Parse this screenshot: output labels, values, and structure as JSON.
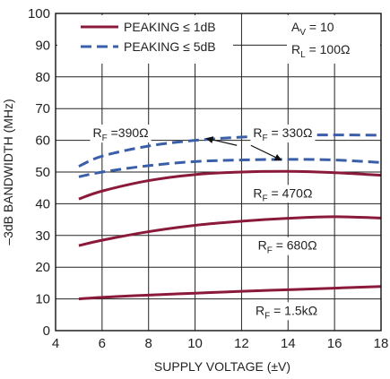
{
  "chart_data": {
    "type": "line",
    "xlabel": "SUPPLY VOLTAGE (±V)",
    "ylabel": "–3dB BANDWIDTH (MHz)",
    "xlim": [
      4,
      18
    ],
    "ylim": [
      0,
      100
    ],
    "xticks": [
      "4",
      "6",
      "8",
      "10",
      "12",
      "14",
      "16",
      "18"
    ],
    "yticks": [
      "0",
      "10",
      "20",
      "30",
      "40",
      "50",
      "60",
      "70",
      "80",
      "90",
      "100"
    ],
    "grid": true,
    "legend_placement": "top-left",
    "legend": [
      {
        "label": "PEAKING ≤ 1dB",
        "style": "solid",
        "color": "#8b1a3a"
      },
      {
        "label": "PEAKING ≤ 5dB",
        "style": "dashed",
        "color": "#3a5ea8"
      }
    ],
    "conditions": {
      "av": {
        "main": "A",
        "sub": "V",
        "rest": " = 10"
      },
      "rl": {
        "main": "R",
        "sub": "L",
        "rest": " = 100Ω"
      }
    },
    "series": [
      {
        "group": "PEAKING ≤ 5dB",
        "style": "dashed",
        "color": "#3a5ea8",
        "x": [
          5,
          6,
          8,
          10,
          12,
          14,
          16,
          18
        ],
        "y": [
          51.8,
          55,
          58.2,
          60,
          61,
          61.6,
          61.7,
          61.6
        ]
      },
      {
        "group": "PEAKING ≤ 5dB",
        "style": "dashed",
        "color": "#3a5ea8",
        "x": [
          5,
          6,
          8,
          10,
          12,
          14,
          16,
          18
        ],
        "y": [
          48.5,
          50,
          52,
          53.3,
          53.8,
          54,
          53.8,
          53
        ]
      },
      {
        "group": "PEAKING ≤ 1dB",
        "style": "solid",
        "color": "#8b1a3a",
        "x": [
          5,
          6,
          8,
          10,
          12,
          14,
          16,
          18
        ],
        "y": [
          41.5,
          44,
          47.3,
          49.2,
          50,
          50.2,
          49.8,
          49
        ]
      },
      {
        "group": "PEAKING ≤ 1dB",
        "style": "solid",
        "color": "#8b1a3a",
        "x": [
          5,
          6,
          8,
          10,
          12,
          14,
          16,
          18
        ],
        "y": [
          26.8,
          28.5,
          31.2,
          33.2,
          34.5,
          35.4,
          35.9,
          35.5
        ]
      },
      {
        "group": "PEAKING ≤ 1dB",
        "style": "solid",
        "color": "#8b1a3a",
        "x": [
          5,
          6,
          8,
          10,
          12,
          14,
          16,
          18
        ],
        "y": [
          10,
          10.5,
          11.2,
          11.8,
          12.4,
          12.9,
          13.4,
          13.9
        ]
      }
    ],
    "annotations": [
      {
        "main": "R",
        "sub": "F",
        "rest": " =390Ω",
        "x": 5.6,
        "y": 61
      },
      {
        "main": "R",
        "sub": "F",
        "rest": " = 330Ω",
        "x": 12.5,
        "y": 61
      },
      {
        "main": "R",
        "sub": "F",
        "rest": " = 470Ω",
        "x": 12.5,
        "y": 42
      },
      {
        "main": "R",
        "sub": "F",
        "rest": " = 680Ω",
        "x": 12.7,
        "y": 25.5
      },
      {
        "main": "R",
        "sub": "F",
        "rest": " = 1.5kΩ",
        "x": 12.6,
        "y": 5
      }
    ],
    "arrows": [
      {
        "from": [
          11.8,
          58.4
        ],
        "to": [
          10.5,
          60.6
        ]
      },
      {
        "from": [
          12.4,
          58.4
        ],
        "to": [
          13.7,
          53.8
        ]
      }
    ]
  }
}
